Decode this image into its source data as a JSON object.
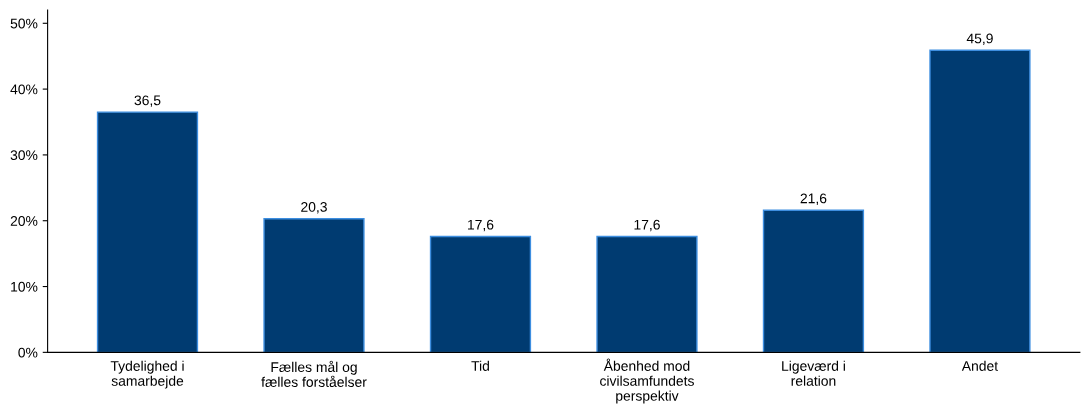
{
  "chart_data": {
    "type": "bar",
    "categories": [
      "Tydelighed i\nsamarbejde",
      "Fælles mål og\nfælles forståelser",
      "Tid",
      "Åbenhed mod\ncivilsamfundets\nperspektiv",
      "Ligeværd i\nrelation",
      "Andet"
    ],
    "values": [
      36.5,
      20.3,
      17.6,
      17.6,
      21.6,
      45.9
    ],
    "value_labels": [
      "36,5",
      "20,3",
      "17,6",
      "17,6",
      "21,6",
      "45,9"
    ],
    "color": "#003b71",
    "ylim": [
      0,
      52
    ],
    "yticks": [
      {
        "value": 0,
        "label": "0%"
      },
      {
        "value": 10,
        "label": "10%"
      },
      {
        "value": 20,
        "label": "20%"
      },
      {
        "value": 30,
        "label": "30%"
      },
      {
        "value": 40,
        "label": "40%"
      },
      {
        "value": 50,
        "label": "50%"
      }
    ],
    "grid": false
  }
}
